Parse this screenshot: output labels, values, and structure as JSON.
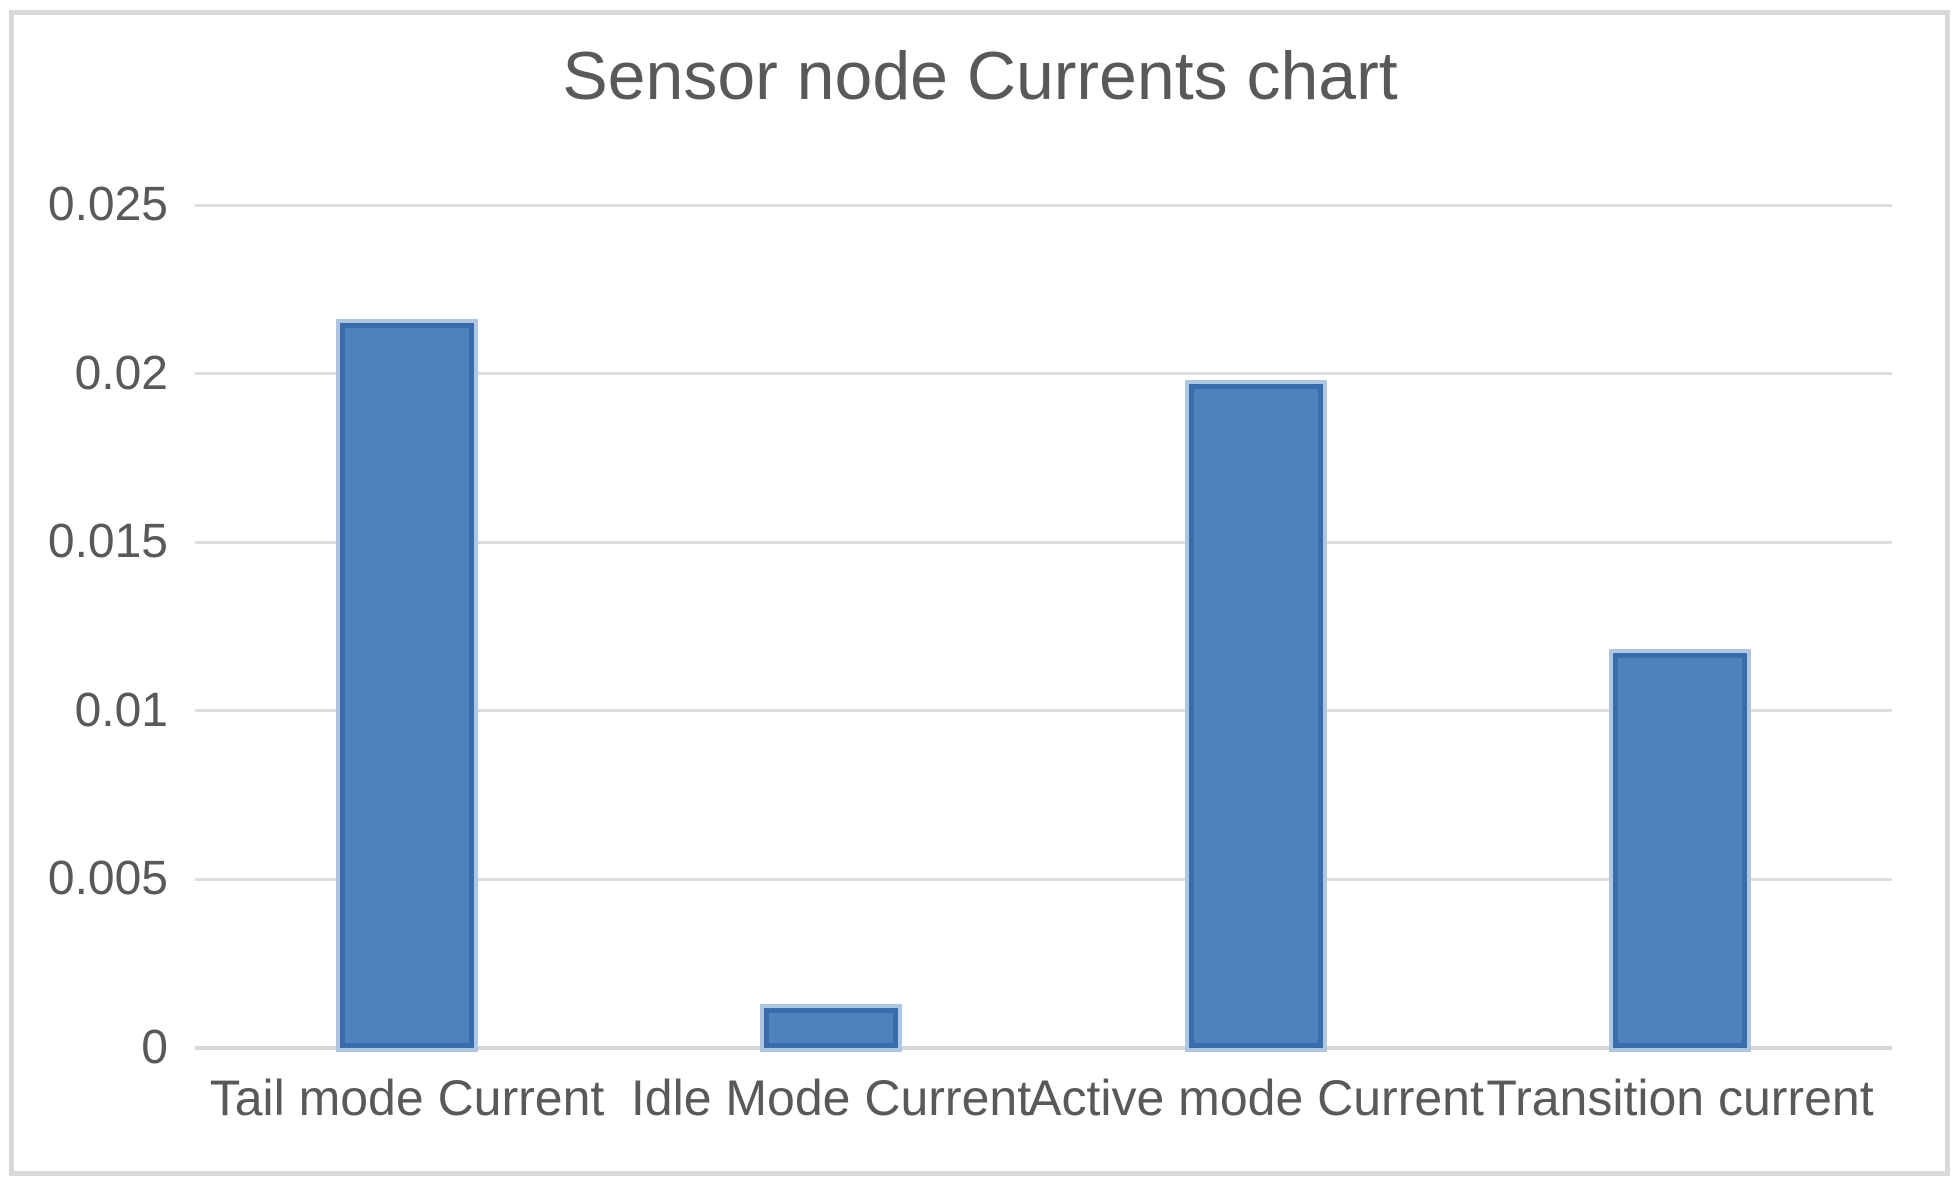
{
  "chart_data": {
    "type": "bar",
    "title": "Sensor node Currents chart",
    "categories": [
      "Tail mode Current",
      "Idle Mode Current",
      "Active mode Current",
      "Transition current"
    ],
    "values": [
      0.0215,
      0.0012,
      0.0197,
      0.0117
    ],
    "xlabel": "",
    "ylabel": "",
    "ylim": [
      0,
      0.025
    ],
    "yticks": [
      0,
      0.005,
      0.01,
      0.015,
      0.02,
      0.025
    ],
    "grid": true,
    "legend": false,
    "colors": {
      "bar_fill": "#4f81bd",
      "bar_border": "#3a6cac",
      "bar_halo": "#aec6e2",
      "gridline": "#dedede",
      "axis_line": "#d6d6d6",
      "text": "#595959",
      "frame_border": "#d9d9d9",
      "background": "#ffffff"
    }
  }
}
